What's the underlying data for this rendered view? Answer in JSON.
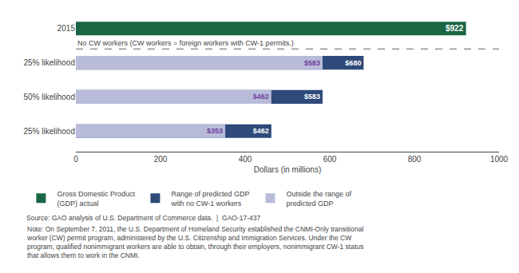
{
  "chart_data": {
    "type": "bar",
    "orientation": "horizontal",
    "categories": [
      "2015",
      "25% likelihood",
      "50% likelihood",
      "25% likelihood"
    ],
    "series": [
      {
        "name": "Gross Domestic Product\n(GDP) actual",
        "color": "#1a6645",
        "values": [
          922,
          null,
          null,
          null
        ],
        "value_labels": [
          "$922",
          null,
          null,
          null
        ]
      },
      {
        "name": "Range of predicted GDP\nwith no CW-1 workers",
        "color": "#2e4a7a",
        "values": [
          null,
          680,
          583,
          462
        ],
        "value_labels": [
          null,
          "$680",
          "$583",
          "$462"
        ]
      },
      {
        "name": "Outside the range of\npredicted GDP",
        "color": "#b8bcd8",
        "values": [
          null,
          583,
          462,
          353
        ],
        "value_labels": [
          null,
          "$583",
          "$462",
          "$353"
        ]
      }
    ],
    "xlabel": "Dollars (in millions)",
    "xlim": [
      0,
      1000
    ],
    "xticks": [
      0,
      200,
      400,
      600,
      800,
      1000
    ],
    "grid": false,
    "data_labels": true,
    "legend": "bottom",
    "annotations": [
      "No CW workers (CW workers = foreign workers with CW-1 permits.)",
      "Source: GAO analysis of U.S. Department of Commerce data.  |  GAO-17-437",
      "Note: On September 7, 2011, the U.S. Department of Homeland Security established the CNMI-Only transitional\nworker (CW) permit program, administered by the U.S. Citizenship and Immigration Services. Under the CW\nprogram, qualified nonimmigrant workers are able to obtain, through their employers, nonimmigrant CW-1 status\nthat allows them to work in the CNMI."
    ]
  }
}
